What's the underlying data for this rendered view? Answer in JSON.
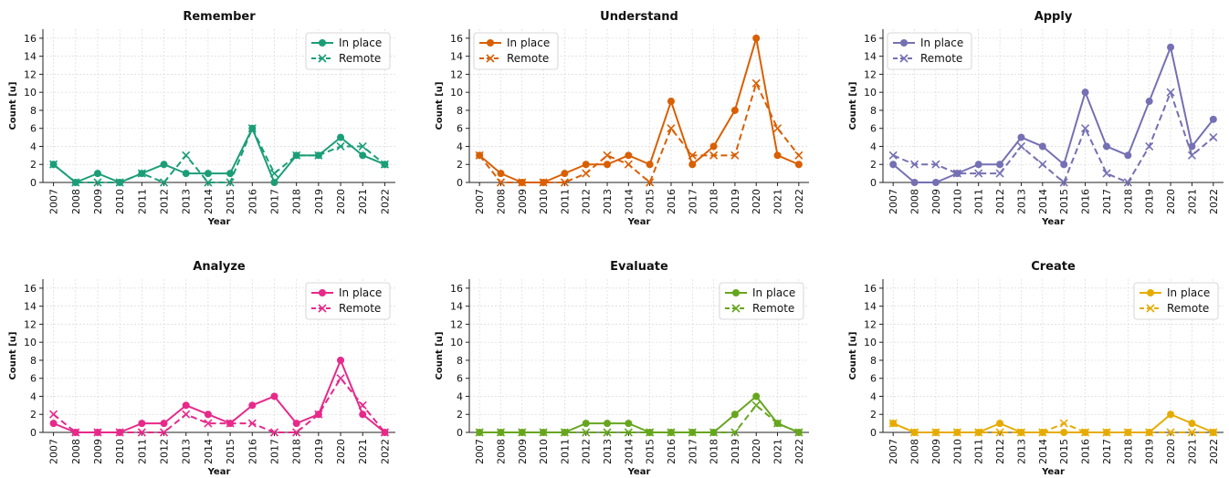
{
  "chart_data": [
    {
      "type": "line",
      "title": "Remember",
      "xlabel": "Year",
      "ylabel": "Count [u]",
      "x": [
        2007,
        2008,
        2009,
        2010,
        2011,
        2012,
        2013,
        2014,
        2015,
        2016,
        2017,
        2018,
        2019,
        2020,
        2021,
        2022
      ],
      "ylim": [
        0,
        17
      ],
      "yticks": [
        0,
        2,
        4,
        6,
        8,
        10,
        12,
        14,
        16
      ],
      "grid": true,
      "legend": "top-right",
      "color": "#1b9e77",
      "series": [
        {
          "name": "In place",
          "style": "solid-circle",
          "values": [
            2,
            0,
            1,
            0,
            1,
            2,
            1,
            1,
            1,
            6,
            0,
            3,
            3,
            5,
            3,
            2
          ]
        },
        {
          "name": "Remote",
          "style": "dashed-x",
          "values": [
            2,
            0,
            0,
            0,
            1,
            0,
            3,
            0,
            0,
            6,
            1,
            3,
            3,
            4,
            4,
            2
          ]
        }
      ]
    },
    {
      "type": "line",
      "title": "Understand",
      "xlabel": "Year",
      "ylabel": "Count [u]",
      "x": [
        2007,
        2008,
        2009,
        2010,
        2011,
        2012,
        2013,
        2014,
        2015,
        2016,
        2017,
        2018,
        2019,
        2020,
        2021,
        2022
      ],
      "ylim": [
        0,
        17
      ],
      "yticks": [
        0,
        2,
        4,
        6,
        8,
        10,
        12,
        14,
        16
      ],
      "grid": true,
      "legend": "top-left",
      "color": "#d95f02",
      "series": [
        {
          "name": "In place",
          "style": "solid-circle",
          "values": [
            3,
            1,
            0,
            0,
            1,
            2,
            2,
            3,
            2,
            9,
            2,
            4,
            8,
            16,
            3,
            2
          ]
        },
        {
          "name": "Remote",
          "style": "dashed-x",
          "values": [
            3,
            0,
            0,
            0,
            0,
            1,
            3,
            2,
            0,
            6,
            3,
            3,
            3,
            11,
            6,
            3
          ]
        }
      ]
    },
    {
      "type": "line",
      "title": "Apply",
      "xlabel": "Year",
      "ylabel": "Count [u]",
      "x": [
        2007,
        2008,
        2009,
        2010,
        2011,
        2012,
        2013,
        2014,
        2015,
        2016,
        2017,
        2018,
        2019,
        2020,
        2021,
        2022
      ],
      "ylim": [
        0,
        17
      ],
      "yticks": [
        0,
        2,
        4,
        6,
        8,
        10,
        12,
        14,
        16
      ],
      "grid": true,
      "legend": "top-left",
      "color": "#7570b3",
      "series": [
        {
          "name": "In place",
          "style": "solid-circle",
          "values": [
            2,
            0,
            0,
            1,
            2,
            2,
            5,
            4,
            2,
            10,
            4,
            3,
            9,
            15,
            4,
            7
          ]
        },
        {
          "name": "Remote",
          "style": "dashed-x",
          "values": [
            3,
            2,
            2,
            1,
            1,
            1,
            4,
            2,
            0,
            6,
            1,
            0,
            4,
            10,
            3,
            5
          ]
        }
      ]
    },
    {
      "type": "line",
      "title": "Analyze",
      "xlabel": "Year",
      "ylabel": "Count [u]",
      "x": [
        2007,
        2008,
        2009,
        2010,
        2011,
        2012,
        2013,
        2014,
        2015,
        2016,
        2017,
        2018,
        2019,
        2020,
        2021,
        2022
      ],
      "ylim": [
        0,
        17
      ],
      "yticks": [
        0,
        2,
        4,
        6,
        8,
        10,
        12,
        14,
        16
      ],
      "grid": true,
      "legend": "top-right",
      "color": "#e7298a",
      "series": [
        {
          "name": "In place",
          "style": "solid-circle",
          "values": [
            1,
            0,
            0,
            0,
            1,
            1,
            3,
            2,
            1,
            3,
            4,
            1,
            2,
            8,
            2,
            0
          ]
        },
        {
          "name": "Remote",
          "style": "dashed-x",
          "values": [
            2,
            0,
            0,
            0,
            0,
            0,
            2,
            1,
            1,
            1,
            0,
            0,
            2,
            6,
            3,
            0
          ]
        }
      ]
    },
    {
      "type": "line",
      "title": "Evaluate",
      "xlabel": "Year",
      "ylabel": "Count [u]",
      "x": [
        2007,
        2008,
        2009,
        2010,
        2011,
        2012,
        2013,
        2014,
        2015,
        2016,
        2017,
        2018,
        2019,
        2020,
        2021,
        2022
      ],
      "ylim": [
        0,
        17
      ],
      "yticks": [
        0,
        2,
        4,
        6,
        8,
        10,
        12,
        14,
        16
      ],
      "grid": true,
      "legend": "top-right",
      "color": "#66a61e",
      "series": [
        {
          "name": "In place",
          "style": "solid-circle",
          "values": [
            0,
            0,
            0,
            0,
            0,
            1,
            1,
            1,
            0,
            0,
            0,
            0,
            2,
            4,
            1,
            0
          ]
        },
        {
          "name": "Remote",
          "style": "dashed-x",
          "values": [
            0,
            0,
            0,
            0,
            0,
            0,
            0,
            0,
            0,
            0,
            0,
            0,
            0,
            3,
            1,
            0
          ]
        }
      ]
    },
    {
      "type": "line",
      "title": "Create",
      "xlabel": "Year",
      "ylabel": "Count [u]",
      "x": [
        2007,
        2008,
        2009,
        2010,
        2011,
        2012,
        2013,
        2014,
        2015,
        2016,
        2017,
        2018,
        2019,
        2020,
        2021,
        2022
      ],
      "ylim": [
        0,
        17
      ],
      "yticks": [
        0,
        2,
        4,
        6,
        8,
        10,
        12,
        14,
        16
      ],
      "grid": true,
      "legend": "top-right",
      "color": "#e6ab02",
      "series": [
        {
          "name": "In place",
          "style": "solid-circle",
          "values": [
            1,
            0,
            0,
            0,
            0,
            1,
            0,
            0,
            0,
            0,
            0,
            0,
            0,
            2,
            1,
            0
          ]
        },
        {
          "name": "Remote",
          "style": "dashed-x",
          "values": [
            1,
            0,
            0,
            0,
            0,
            0,
            0,
            0,
            1,
            0,
            0,
            0,
            0,
            0,
            0,
            0
          ]
        }
      ]
    }
  ]
}
